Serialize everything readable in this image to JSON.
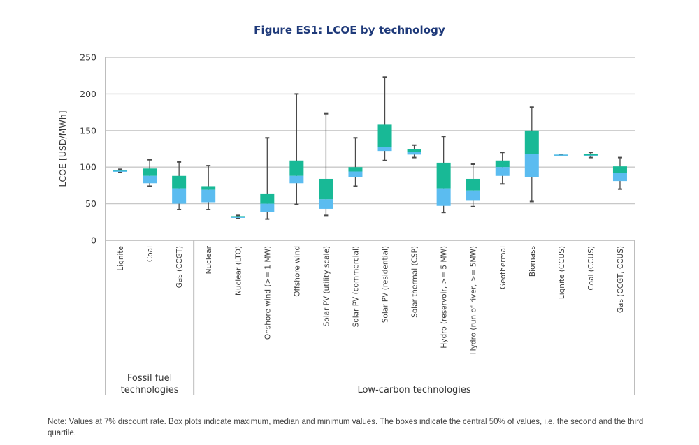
{
  "title": "Figure ES1: LCOE by technology",
  "note": "Note: Values at 7% discount rate. Box plots indicate maximum, median and minimum values. The boxes indicate the central 50% of values, i.e. the second and the third quartile.",
  "colors": {
    "upper_box": "#18b996",
    "lower_box": "#5bbcf0",
    "whisker": "#4a4a4a",
    "grid": "#c8c8c8",
    "frame": "#bdbdbd",
    "title": "#1f3a7a"
  },
  "chart_data": {
    "type": "boxplot",
    "title": "Figure ES1: LCOE by technology",
    "xlabel": "",
    "ylabel": "LCOE [USD/MWh]",
    "ylim": [
      0,
      250
    ],
    "yticks": [
      0,
      50,
      100,
      150,
      200,
      250
    ],
    "grid": true,
    "groups": [
      {
        "label": "Fossil fuel\ntechnologies",
        "label_lines": [
          "Fossil fuel",
          "technologies"
        ],
        "categories": [
          "Lignite",
          "Coal",
          "Gas (CCGT)"
        ]
      },
      {
        "label": "Low-carbon technologies",
        "label_lines": [
          "Low-carbon technologies"
        ],
        "categories": [
          "Nuclear",
          "Nuclear (LTO)",
          "Onshore wind (>= 1 MW)",
          "Offshore wind",
          "Solar PV (utility scale)",
          "Solar PV (commercial)",
          "Solar PV (residential)",
          "Solar thermal (CSP)",
          "Hydro (reservoir, >= 5 MW)",
          "Hydro (run of river, >= 5MW)",
          "Geothermal",
          "Biomass",
          "Lignite (CCUS)",
          "Coal (CCUS)",
          "Gas (CCGT, CCUS)"
        ]
      }
    ],
    "categories": [
      "Lignite",
      "Coal",
      "Gas (CCGT)",
      "Nuclear",
      "Nuclear (LTO)",
      "Onshore wind (>= 1 MW)",
      "Offshore wind",
      "Solar PV (utility scale)",
      "Solar PV (commercial)",
      "Solar PV (residential)",
      "Solar thermal (CSP)",
      "Hydro (reservoir, >= 5 MW)",
      "Hydro (run of river, >= 5MW)",
      "Geothermal",
      "Biomass",
      "Lignite (CCUS)",
      "Coal (CCUS)",
      "Gas (CCGT, CCUS)"
    ],
    "series": [
      {
        "name": "Lignite",
        "min": 93,
        "q1": 94,
        "median": 95,
        "q3": 96,
        "max": 97
      },
      {
        "name": "Coal",
        "min": 74,
        "q1": 78,
        "median": 88,
        "q3": 98,
        "max": 110
      },
      {
        "name": "Gas (CCGT)",
        "min": 42,
        "q1": 50,
        "median": 71,
        "q3": 88,
        "max": 107
      },
      {
        "name": "Nuclear",
        "min": 42,
        "q1": 52,
        "median": 69,
        "q3": 74,
        "max": 102
      },
      {
        "name": "Nuclear (LTO)",
        "min": 30,
        "q1": 31,
        "median": 32,
        "q3": 33,
        "max": 34
      },
      {
        "name": "Onshore wind (>= 1 MW)",
        "min": 29,
        "q1": 39,
        "median": 50,
        "q3": 64,
        "max": 140
      },
      {
        "name": "Offshore wind",
        "min": 49,
        "q1": 78,
        "median": 88,
        "q3": 109,
        "max": 200
      },
      {
        "name": "Solar PV (utility scale)",
        "min": 34,
        "q1": 43,
        "median": 56,
        "q3": 84,
        "max": 173
      },
      {
        "name": "Solar PV (commercial)",
        "min": 74,
        "q1": 86,
        "median": 94,
        "q3": 100,
        "max": 140
      },
      {
        "name": "Solar PV (residential)",
        "min": 109,
        "q1": 122,
        "median": 127,
        "q3": 158,
        "max": 223
      },
      {
        "name": "Solar thermal (CSP)",
        "min": 113,
        "q1": 117,
        "median": 121,
        "q3": 125,
        "max": 130
      },
      {
        "name": "Hydro (reservoir, >= 5 MW)",
        "min": 38,
        "q1": 47,
        "median": 71,
        "q3": 106,
        "max": 142
      },
      {
        "name": "Hydro (run of river, >= 5MW)",
        "min": 46,
        "q1": 54,
        "median": 68,
        "q3": 84,
        "max": 104
      },
      {
        "name": "Geothermal",
        "min": 77,
        "q1": 88,
        "median": 100,
        "q3": 109,
        "max": 120
      },
      {
        "name": "Biomass",
        "min": 53,
        "q1": 86,
        "median": 118,
        "q3": 150,
        "max": 182
      },
      {
        "name": "Lignite (CCUS)",
        "min": 116,
        "q1": 116,
        "median": 117,
        "q3": 117,
        "max": 117
      },
      {
        "name": "Coal (CCUS)",
        "min": 113,
        "q1": 115,
        "median": 116,
        "q3": 118,
        "max": 120
      },
      {
        "name": "Gas (CCGT, CCUS)",
        "min": 70,
        "q1": 81,
        "median": 92,
        "q3": 101,
        "max": 113
      }
    ],
    "x_labels_display": [
      "Lignite",
      "Coal",
      "Gas (CCGT)",
      "Nuclear",
      "Nuclear (LTO)",
      "Onshore wind (>= 1 MW)",
      "Offshore wind",
      "Solar PV (utility scale)",
      "Solar PV (commercial)",
      "Solar PV (residential)",
      "Solar thermal (CSP)",
      "Hydro (reservoir, >= 5 MW)",
      "Hydro (run of river, >= 5MW)",
      "Geothermal",
      "Biomass",
      "Lignite (CCUS)",
      "Coal (CCUS)",
      "Gas (CCGT, CCUS)"
    ]
  }
}
